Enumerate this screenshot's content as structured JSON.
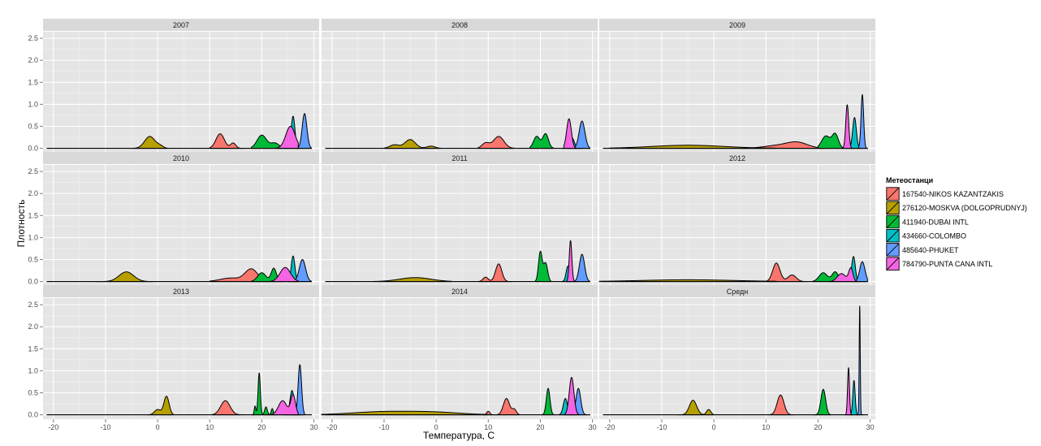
{
  "chart_data": {
    "type": "area",
    "chart_kind": "faceted density plot",
    "xlabel": "Температура, С",
    "ylabel": "Плотность",
    "xlim": [
      -22,
      31
    ],
    "ylim": [
      -0.1,
      2.65
    ],
    "x_ticks": [
      -20,
      -10,
      0,
      10,
      20,
      30
    ],
    "y_ticks": [
      0.0,
      0.5,
      1.0,
      1.5,
      2.0,
      2.5
    ],
    "y_tick_labels": [
      "0.0",
      "0.5",
      "1.0",
      "1.5",
      "2.0",
      "2.5"
    ],
    "grid": true,
    "legend": {
      "title": "Метеостанци",
      "placement": "right",
      "entries": [
        {
          "id": "s1",
          "label": "167540-NIKOS KAZANTZAKIS",
          "color": "#F8766D"
        },
        {
          "id": "s2",
          "label": "276120-MOSKVA (DOLGOPRUDNYJ)",
          "color": "#B79F00"
        },
        {
          "id": "s3",
          "label": "411940-DUBAI INTL",
          "color": "#00BA38"
        },
        {
          "id": "s4",
          "label": "434660-COLOMBO",
          "color": "#00BFC4"
        },
        {
          "id": "s5",
          "label": "485640-PHUKET",
          "color": "#619CFF"
        },
        {
          "id": "s6",
          "label": "784790-PUNTA CANA INTL",
          "color": "#F564E3"
        }
      ]
    },
    "facets": [
      {
        "label": "2007",
        "series": {
          "s1": {
            "range": [
              10,
              16.5
            ],
            "peaks": [
              [
                12,
                0.33,
                0.8
              ],
              [
                14.5,
                0.12,
                0.5
              ]
            ]
          },
          "s2": {
            "range": [
              -5,
              2
            ],
            "peaks": [
              [
                -1.5,
                0.27,
                1.0
              ],
              [
                0.5,
                0.05,
                0.6
              ]
            ]
          },
          "s3": {
            "range": [
              18,
              25
            ],
            "peaks": [
              [
                20,
                0.3,
                0.9
              ],
              [
                22.5,
                0.12,
                0.8
              ]
            ]
          },
          "s4": {
            "range": [
              25,
              27
            ],
            "peaks": [
              [
                26,
                0.73,
                0.35
              ]
            ]
          },
          "s5": {
            "range": [
              26.5,
              29.5
            ],
            "peaks": [
              [
                28.2,
                0.79,
                0.45
              ]
            ]
          },
          "s6": {
            "range": [
              22.5,
              27
            ],
            "peaks": [
              [
                25.5,
                0.5,
                0.9
              ]
            ]
          }
        }
      },
      {
        "label": "2008",
        "series": {
          "s1": {
            "range": [
              8,
              15
            ],
            "peaks": [
              [
                9.5,
                0.12,
                0.7
              ],
              [
                12,
                0.27,
                1.0
              ]
            ]
          },
          "s2": {
            "range": [
              -10,
              1
            ],
            "peaks": [
              [
                -8,
                0.08,
                0.9
              ],
              [
                -5,
                0.2,
                1.0
              ],
              [
                -1,
                0.05,
                0.8
              ]
            ]
          },
          "s3": {
            "range": [
              18,
              22.5
            ],
            "peaks": [
              [
                19.3,
                0.27,
                0.6
              ],
              [
                21,
                0.33,
                0.55
              ]
            ]
          },
          "s4": {
            "range": [
              24,
              28
            ],
            "peaks": [
              [
                26,
                0.25,
                0.5
              ]
            ]
          },
          "s5": {
            "range": [
              26.5,
              29.5
            ],
            "peaks": [
              [
                28,
                0.62,
                0.55
              ]
            ]
          },
          "s6": {
            "range": [
              24.5,
              27
            ],
            "peaks": [
              [
                25.5,
                0.67,
                0.45
              ]
            ]
          }
        }
      },
      {
        "label": "2009",
        "series": {
          "s1": {
            "range": [
              5,
              21
            ],
            "peaks": [
              [
                12,
                0.06,
                2.5
              ],
              [
                16,
                0.13,
                2.0
              ]
            ]
          },
          "s2": {
            "range": [
              -20,
              12
            ],
            "peaks": [
              [
                -5,
                0.07,
                7.0
              ]
            ]
          },
          "s3": {
            "range": [
              20,
              25
            ],
            "peaks": [
              [
                21.5,
                0.28,
                0.8
              ],
              [
                23.3,
                0.32,
                0.6
              ]
            ]
          },
          "s4": {
            "range": [
              25.5,
              28.5
            ],
            "peaks": [
              [
                27,
                0.7,
                0.35
              ]
            ]
          },
          "s5": {
            "range": [
              27.5,
              29.5
            ],
            "peaks": [
              [
                28.5,
                1.22,
                0.25
              ]
            ]
          },
          "s6": {
            "range": [
              24.5,
              27
            ],
            "peaks": [
              [
                25.6,
                0.99,
                0.28
              ]
            ]
          }
        }
      },
      {
        "label": "2010",
        "series": {
          "s1": {
            "range": [
              10,
              21
            ],
            "peaks": [
              [
                14,
                0.08,
                2.0
              ],
              [
                18,
                0.28,
                1.2
              ]
            ]
          },
          "s2": {
            "range": [
              -12,
              -1
            ],
            "peaks": [
              [
                -6,
                0.22,
                1.4
              ]
            ]
          },
          "s3": {
            "range": [
              18,
              24
            ],
            "peaks": [
              [
                20,
                0.2,
                0.8
              ],
              [
                22.3,
                0.3,
                0.5
              ]
            ]
          },
          "s4": {
            "range": [
              25,
              27
            ],
            "peaks": [
              [
                26,
                0.58,
                0.35
              ]
            ]
          },
          "s5": {
            "range": [
              26,
              29.5
            ],
            "peaks": [
              [
                27.8,
                0.5,
                0.6
              ]
            ]
          },
          "s6": {
            "range": [
              21,
              27
            ],
            "peaks": [
              [
                24.5,
                0.32,
                1.0
              ]
            ]
          }
        }
      },
      {
        "label": "2011",
        "series": {
          "s1": {
            "range": [
              8,
              14.5
            ],
            "peaks": [
              [
                9.5,
                0.1,
                0.5
              ],
              [
                12,
                0.4,
                0.6
              ]
            ]
          },
          "s2": {
            "range": [
              -12,
              3
            ],
            "peaks": [
              [
                -4,
                0.09,
                3.0
              ]
            ]
          },
          "s3": {
            "range": [
              19,
              22
            ],
            "peaks": [
              [
                20,
                0.67,
                0.35
              ],
              [
                21,
                0.42,
                0.4
              ]
            ]
          },
          "s4": {
            "range": [
              24,
              26.5
            ],
            "peaks": [
              [
                25.3,
                0.35,
                0.35
              ]
            ]
          },
          "s5": {
            "range": [
              26.5,
              29.5
            ],
            "peaks": [
              [
                28,
                0.62,
                0.5
              ]
            ]
          },
          "s6": {
            "range": [
              25,
              27
            ],
            "peaks": [
              [
                25.8,
                0.93,
                0.25
              ]
            ]
          }
        }
      },
      {
        "label": "2012",
        "series": {
          "s1": {
            "range": [
              10,
              18
            ],
            "peaks": [
              [
                12,
                0.42,
                0.7
              ],
              [
                15,
                0.15,
                0.8
              ]
            ]
          },
          "s2": {
            "range": [
              -22,
              12
            ],
            "peaks": [
              [
                -5,
                0.04,
                9.0
              ]
            ]
          },
          "s3": {
            "range": [
              19,
              25
            ],
            "peaks": [
              [
                21,
                0.2,
                0.8
              ],
              [
                23.3,
                0.22,
                0.6
              ]
            ]
          },
          "s4": {
            "range": [
              25.5,
              28
            ],
            "peaks": [
              [
                26.8,
                0.57,
                0.35
              ]
            ]
          },
          "s5": {
            "range": [
              27,
              29.5
            ],
            "peaks": [
              [
                28.5,
                0.45,
                0.5
              ]
            ]
          },
          "s6": {
            "range": [
              22,
              27.5
            ],
            "peaks": [
              [
                24.5,
                0.18,
                0.8
              ],
              [
                26.3,
                0.3,
                0.4
              ]
            ]
          }
        }
      },
      {
        "label": "2013",
        "series": {
          "s1": {
            "range": [
              10.5,
              16
            ],
            "peaks": [
              [
                13,
                0.32,
                0.9
              ]
            ]
          },
          "s2": {
            "range": [
              -2,
              3
            ],
            "peaks": [
              [
                0,
                0.12,
                0.6
              ],
              [
                1.7,
                0.42,
                0.5
              ]
            ]
          },
          "s3": {
            "range": [
              18,
              23
            ],
            "peaks": [
              [
                18.7,
                0.2,
                0.15
              ],
              [
                19.5,
                0.95,
                0.22
              ],
              [
                20.8,
                0.18,
                0.25
              ],
              [
                22,
                0.14,
                0.2
              ]
            ]
          },
          "s4": {
            "range": [
              24,
              27.5
            ],
            "peaks": [
              [
                25.8,
                0.55,
                0.4
              ]
            ]
          },
          "s5": {
            "range": [
              26,
              28.2
            ],
            "peaks": [
              [
                27.3,
                1.14,
                0.33
              ]
            ]
          },
          "s6": {
            "range": [
              21,
              27
            ],
            "peaks": [
              [
                24,
                0.32,
                0.8
              ],
              [
                26,
                0.45,
                0.45
              ]
            ]
          }
        }
      },
      {
        "label": "2014",
        "series": {
          "s1": {
            "range": [
              9,
              16
            ],
            "peaks": [
              [
                10,
                0.08,
                0.3
              ],
              [
                13.5,
                0.37,
                0.6
              ],
              [
                15,
                0.12,
                0.4
              ]
            ]
          },
          "s2": {
            "range": [
              -22,
              10
            ],
            "peaks": [
              [
                -10,
                0.07,
                6.0
              ],
              [
                0,
                0.05,
                5.0
              ]
            ]
          },
          "s3": {
            "range": [
              20,
              23
            ],
            "peaks": [
              [
                21.5,
                0.6,
                0.35
              ]
            ]
          },
          "s4": {
            "range": [
              23.5,
              26
            ],
            "peaks": [
              [
                24.8,
                0.37,
                0.4
              ]
            ]
          },
          "s5": {
            "range": [
              26,
              29
            ],
            "peaks": [
              [
                27.3,
                0.6,
                0.45
              ]
            ]
          },
          "s6": {
            "range": [
              24.5,
              27.5
            ],
            "peaks": [
              [
                26,
                0.85,
                0.45
              ]
            ]
          }
        }
      },
      {
        "label": "Средн",
        "series": {
          "s1": {
            "range": [
              10.5,
              15.5
            ],
            "peaks": [
              [
                12.8,
                0.45,
                0.65
              ]
            ]
          },
          "s2": {
            "range": [
              -7,
              0
            ],
            "peaks": [
              [
                -4,
                0.33,
                0.7
              ],
              [
                -1,
                0.12,
                0.4
              ]
            ]
          },
          "s3": {
            "range": [
              19,
              22.5
            ],
            "peaks": [
              [
                21,
                0.58,
                0.45
              ]
            ]
          },
          "s4": {
            "range": [
              26,
              27.8
            ],
            "peaks": [
              [
                26.9,
                0.78,
                0.22
              ]
            ]
          },
          "s5": {
            "range": [
              27.4,
              28.6
            ],
            "peaks": [
              [
                28.0,
                2.47,
                0.1
              ]
            ]
          },
          "s6": {
            "range": [
              25.2,
              26.5
            ],
            "peaks": [
              [
                25.85,
                1.07,
                0.18
              ]
            ]
          }
        }
      }
    ]
  }
}
